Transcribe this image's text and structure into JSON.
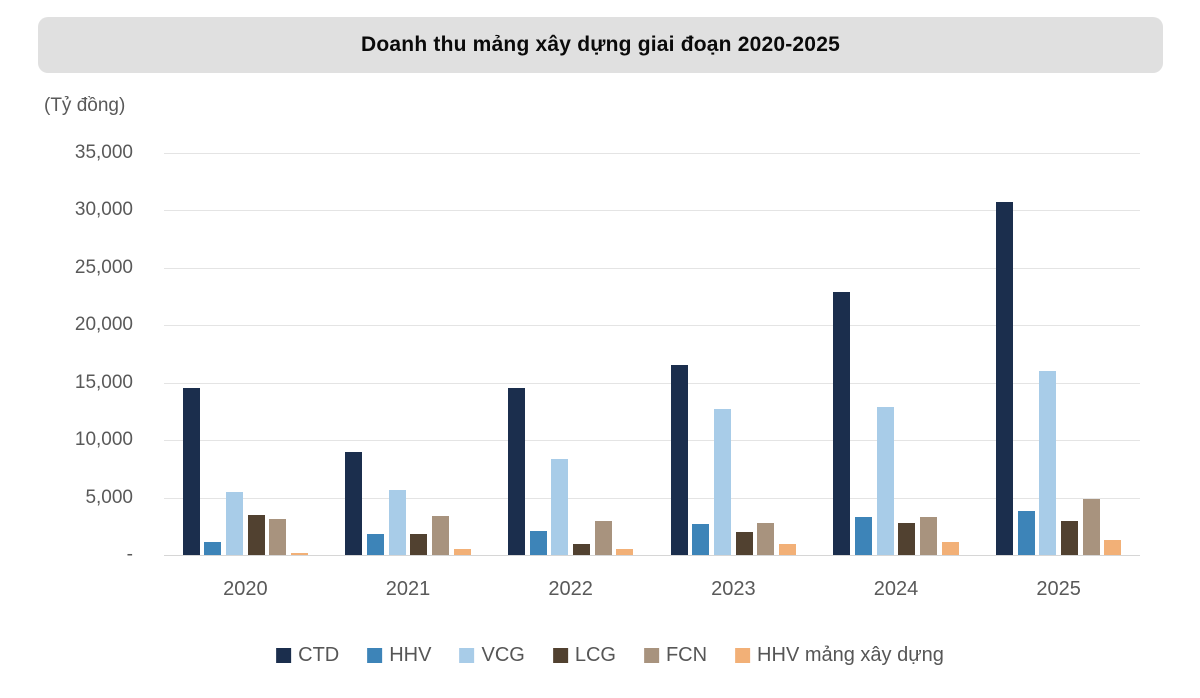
{
  "title": {
    "text": "Doanh thu mảng xây dựng giai đoạn 2020-2025",
    "background_color": "#e0e0e0"
  },
  "axis": {
    "unit_label": "(Tỷ đồng)",
    "tick_color": "#595959",
    "gridline_color": "#e4e4e4"
  },
  "chart_data": {
    "type": "bar",
    "title": "Doanh thu mảng xây dựng giai đoạn 2020-2025",
    "unit_label": "(Tỷ đồng)",
    "categories": [
      "2020",
      "2021",
      "2022",
      "2023",
      "2024",
      "2025"
    ],
    "series": [
      {
        "name": "CTD",
        "color": "#1b2e4d",
        "values": [
          14500,
          9000,
          14500,
          16500,
          22900,
          30700
        ]
      },
      {
        "name": "HHV",
        "color": "#3d84b8",
        "values": [
          1100,
          1800,
          2100,
          2700,
          3300,
          3800
        ]
      },
      {
        "name": "VCG",
        "color": "#a8cce8",
        "values": [
          5500,
          5700,
          8400,
          12700,
          12900,
          16000
        ]
      },
      {
        "name": "LCG",
        "color": "#514130",
        "values": [
          3500,
          1800,
          1000,
          2000,
          2800,
          3000
        ]
      },
      {
        "name": "FCN",
        "color": "#a8937e",
        "values": [
          3100,
          3400,
          3000,
          2800,
          3300,
          4900
        ]
      },
      {
        "name": "HHV mảng xây dựng",
        "color": "#f2b077",
        "values": [
          150,
          500,
          500,
          1000,
          1100,
          1300
        ]
      }
    ],
    "ylim": [
      0,
      35000
    ],
    "ytick_interval": 5000,
    "ytick_labels": [
      "-",
      "5,000",
      "10,000",
      "15,000",
      "20,000",
      "25,000",
      "30,000",
      "35,000"
    ],
    "grid": true,
    "legend_position": "bottom"
  }
}
